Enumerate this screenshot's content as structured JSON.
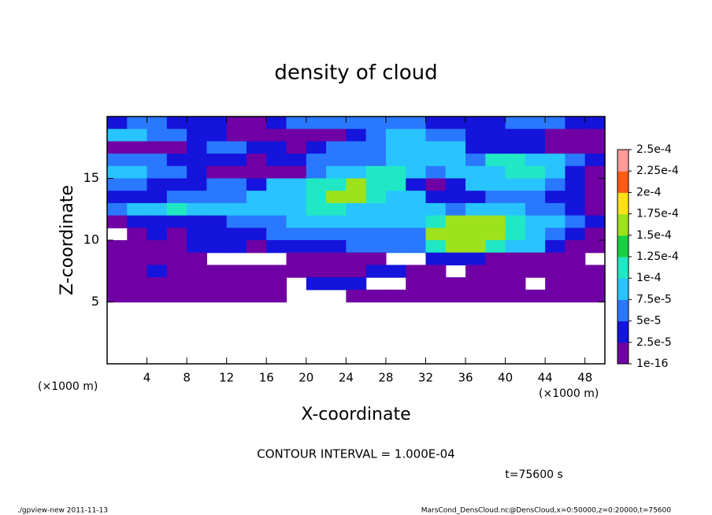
{
  "chart_data": {
    "type": "heatmap",
    "title": "density of cloud",
    "x_label": "X-coordinate",
    "y_label": "Z-coordinate",
    "x_unit": "(×1000 m)",
    "y_unit": "(×1000 m)",
    "annotation": "CONTOUR INTERVAL = 1.000E-04",
    "time_label": "t=75600 s",
    "footer_left": "./gpview-new   2011-11-13",
    "footer_right": "MarsCond_DensCloud.nc@DensCloud,x=0:50000,z=0:20000,t=75600",
    "xlim": [
      0,
      50
    ],
    "ylim": [
      0,
      20
    ],
    "xticks": [
      4,
      8,
      12,
      16,
      20,
      24,
      28,
      32,
      36,
      40,
      44,
      48
    ],
    "yticks": [
      5,
      10,
      15
    ],
    "x": [
      1,
      3,
      5,
      7,
      9,
      11,
      13,
      15,
      17,
      19,
      21,
      23,
      25,
      27,
      29,
      31,
      33,
      35,
      37,
      39,
      41,
      43,
      45,
      47,
      49
    ],
    "y": [
      19.5,
      18.5,
      17.5,
      16.5,
      15.5,
      14.5,
      13.5,
      12.5,
      11.5,
      10.5,
      9.5,
      8.5,
      7.5,
      6.5,
      5.5
    ],
    "z": [
      [
        3e-05,
        6e-05,
        6e-05,
        3e-05,
        3e-05,
        3e-05,
        1e-05,
        1e-05,
        3e-05,
        6e-05,
        6e-05,
        6e-05,
        6e-05,
        6e-05,
        6e-05,
        6e-05,
        3e-05,
        3e-05,
        3e-05,
        3e-05,
        6e-05,
        6e-05,
        6e-05,
        3e-05,
        3e-05
      ],
      [
        9e-05,
        9e-05,
        6e-05,
        6e-05,
        3e-05,
        3e-05,
        1e-05,
        1e-05,
        1e-05,
        1e-05,
        1e-05,
        1e-05,
        3e-05,
        6e-05,
        9e-05,
        9e-05,
        6e-05,
        6e-05,
        3e-05,
        3e-05,
        3e-05,
        3e-05,
        1e-05,
        1e-05,
        1e-05
      ],
      [
        1e-05,
        1e-05,
        1e-05,
        1e-05,
        3e-05,
        6e-05,
        6e-05,
        3e-05,
        3e-05,
        1e-05,
        3e-05,
        6e-05,
        6e-05,
        6e-05,
        9e-05,
        9e-05,
        9e-05,
        9e-05,
        3e-05,
        3e-05,
        3e-05,
        3e-05,
        1e-05,
        1e-05,
        1e-05
      ],
      [
        6e-05,
        6e-05,
        6e-05,
        3e-05,
        3e-05,
        3e-05,
        3e-05,
        1e-05,
        3e-05,
        3e-05,
        6e-05,
        6e-05,
        6e-05,
        6e-05,
        9e-05,
        9e-05,
        9e-05,
        9e-05,
        6e-05,
        0.00011,
        0.00011,
        9e-05,
        9e-05,
        6e-05,
        3e-05
      ],
      [
        9e-05,
        9e-05,
        6e-05,
        6e-05,
        3e-05,
        1e-05,
        1e-05,
        1e-05,
        1e-05,
        1e-05,
        6e-05,
        9e-05,
        9e-05,
        0.00011,
        0.00011,
        9e-05,
        6e-05,
        9e-05,
        9e-05,
        9e-05,
        0.00011,
        0.00011,
        9e-05,
        3e-05,
        1e-05
      ],
      [
        6e-05,
        6e-05,
        3e-05,
        3e-05,
        3e-05,
        6e-05,
        6e-05,
        3e-05,
        9e-05,
        9e-05,
        0.00011,
        0.00011,
        0.00016,
        0.00011,
        0.00011,
        3e-05,
        1e-05,
        3e-05,
        9e-05,
        9e-05,
        9e-05,
        9e-05,
        6e-05,
        3e-05,
        1e-05
      ],
      [
        3e-05,
        3e-05,
        3e-05,
        6e-05,
        6e-05,
        6e-05,
        6e-05,
        9e-05,
        9e-05,
        9e-05,
        0.00011,
        0.00016,
        0.00016,
        0.00011,
        9e-05,
        9e-05,
        3e-05,
        3e-05,
        3e-05,
        6e-05,
        6e-05,
        6e-05,
        3e-05,
        3e-05,
        1e-05
      ],
      [
        6e-05,
        9e-05,
        9e-05,
        0.00011,
        9e-05,
        9e-05,
        9e-05,
        9e-05,
        9e-05,
        9e-05,
        0.00011,
        0.00011,
        9e-05,
        9e-05,
        9e-05,
        9e-05,
        9e-05,
        6e-05,
        9e-05,
        9e-05,
        9e-05,
        6e-05,
        6e-05,
        3e-05,
        1e-05
      ],
      [
        1e-05,
        3e-05,
        3e-05,
        3e-05,
        3e-05,
        3e-05,
        6e-05,
        6e-05,
        6e-05,
        9e-05,
        9e-05,
        9e-05,
        9e-05,
        9e-05,
        9e-05,
        9e-05,
        0.00011,
        0.00016,
        0.00016,
        0.00016,
        0.00011,
        9e-05,
        9e-05,
        6e-05,
        3e-05
      ],
      [
        null,
        1e-05,
        3e-05,
        1e-05,
        3e-05,
        3e-05,
        3e-05,
        3e-05,
        6e-05,
        6e-05,
        6e-05,
        6e-05,
        6e-05,
        6e-05,
        6e-05,
        6e-05,
        0.00016,
        0.00016,
        0.00016,
        0.00016,
        0.00011,
        9e-05,
        6e-05,
        3e-05,
        1e-05
      ],
      [
        1e-05,
        1e-05,
        1e-05,
        1e-05,
        3e-05,
        3e-05,
        3e-05,
        1e-05,
        3e-05,
        3e-05,
        3e-05,
        3e-05,
        6e-05,
        6e-05,
        6e-05,
        6e-05,
        0.00011,
        0.00016,
        0.00016,
        0.00011,
        9e-05,
        9e-05,
        3e-05,
        1e-05,
        1e-05
      ],
      [
        1e-05,
        1e-05,
        1e-05,
        1e-05,
        1e-05,
        null,
        null,
        null,
        null,
        1e-05,
        1e-05,
        1e-05,
        1e-05,
        1e-05,
        null,
        null,
        3e-05,
        3e-05,
        3e-05,
        1e-05,
        1e-05,
        1e-05,
        1e-05,
        1e-05,
        null
      ],
      [
        1e-05,
        1e-05,
        3e-05,
        1e-05,
        1e-05,
        1e-05,
        1e-05,
        1e-05,
        1e-05,
        1e-05,
        1e-05,
        1e-05,
        1e-05,
        3e-05,
        3e-05,
        1e-05,
        1e-05,
        null,
        1e-05,
        1e-05,
        1e-05,
        1e-05,
        1e-05,
        1e-05,
        1e-05
      ],
      [
        1e-05,
        1e-05,
        1e-05,
        1e-05,
        1e-05,
        1e-05,
        1e-05,
        1e-05,
        1e-05,
        null,
        3e-05,
        3e-05,
        3e-05,
        null,
        null,
        1e-05,
        1e-05,
        1e-05,
        1e-05,
        1e-05,
        1e-05,
        null,
        1e-05,
        1e-05,
        1e-05
      ],
      [
        1e-05,
        1e-05,
        1e-05,
        1e-05,
        1e-05,
        1e-05,
        1e-05,
        1e-05,
        1e-05,
        null,
        null,
        null,
        1e-05,
        1e-05,
        1e-05,
        1e-05,
        1e-05,
        1e-05,
        1e-05,
        1e-05,
        1e-05,
        1e-05,
        1e-05,
        1e-05,
        1e-05
      ]
    ],
    "colorbar": {
      "ticks": [
        1e-16,
        {
          "value": 2.5e-05,
          "label": "2.5e-5"
        },
        {
          "value": 5e-05,
          "label": "5e-5"
        },
        {
          "value": 7.5e-05,
          "label": "7.5e-5"
        },
        {
          "value": 0.0001,
          "label": "1e-4"
        },
        {
          "value": 0.000125,
          "label": "1.25e-4"
        },
        {
          "value": 0.00015,
          "label": "1.5e-4"
        },
        {
          "value": 0.000175,
          "label": "1.75e-4"
        },
        {
          "value": 0.0002,
          "label": "2e-4"
        },
        {
          "value": 0.000225,
          "label": "2.25e-4"
        },
        {
          "value": 0.00025,
          "label": "2.5e-4"
        }
      ],
      "colors": [
        "#7000a4",
        "#1414dc",
        "#2a78ff",
        "#28c4ff",
        "#20e8c4",
        "#18d040",
        "#9ee21c",
        "#ffe018",
        "#ff5a14",
        "#ff9a9a"
      ]
    }
  }
}
